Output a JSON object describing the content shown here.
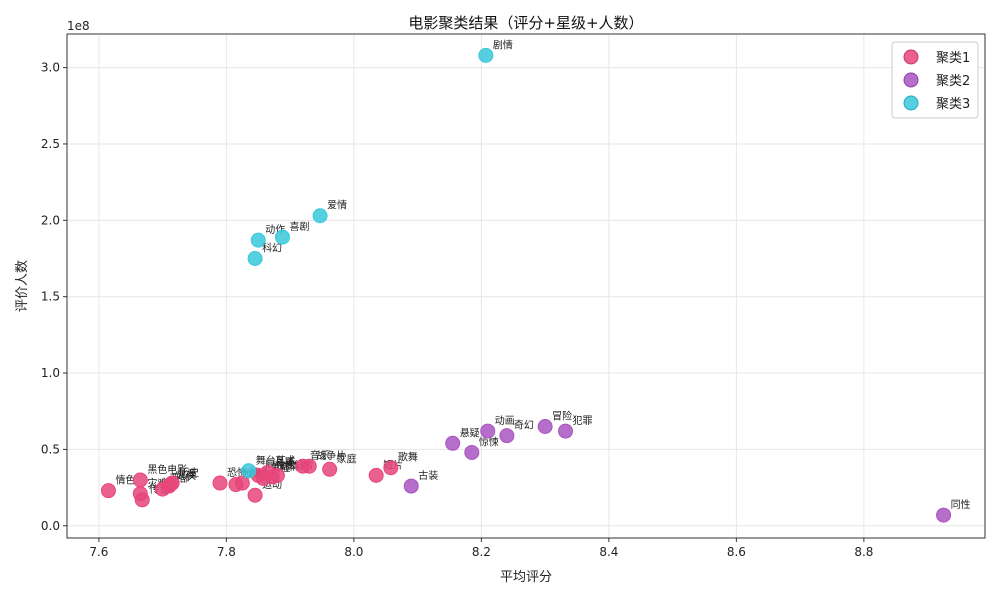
{
  "chart_data": {
    "type": "scatter",
    "title": "电影聚类结果（评分+星级+人数）",
    "xlabel": "平均评分",
    "ylabel": "评价人数",
    "y_offset_text": "1e8",
    "xlim": [
      7.55,
      8.99
    ],
    "ylim": [
      -0.08,
      3.22
    ],
    "xticks": [
      "7.6",
      "7.8",
      "8.0",
      "8.2",
      "8.4",
      "8.6",
      "8.8"
    ],
    "yticks": [
      "0.0",
      "0.5",
      "1.0",
      "1.5",
      "2.0",
      "2.5",
      "3.0"
    ],
    "xtick_values": [
      7.6,
      7.8,
      8.0,
      8.2,
      8.4,
      8.6,
      8.8
    ],
    "ytick_values": [
      0.0,
      0.5,
      1.0,
      1.5,
      2.0,
      2.5,
      3.0
    ],
    "grid": true,
    "legend_position": "top-right",
    "series": [
      {
        "name": "聚类1",
        "color": "#e8457a",
        "points": [
          {
            "x": 7.615,
            "y": 0.23,
            "label": "情色"
          },
          {
            "x": 7.665,
            "y": 0.3,
            "label": "黑色电影"
          },
          {
            "x": 7.665,
            "y": 0.21,
            "label": "灾难"
          },
          {
            "x": 7.668,
            "y": 0.17,
            "label": "传记"
          },
          {
            "x": 7.7,
            "y": 0.24,
            "label": "西部"
          },
          {
            "x": 7.71,
            "y": 0.26,
            "label": "武侠"
          },
          {
            "x": 7.712,
            "y": 0.27,
            "label": "儿童"
          },
          {
            "x": 7.715,
            "y": 0.28,
            "label": "历史"
          },
          {
            "x": 7.79,
            "y": 0.28,
            "label": "恐怖"
          },
          {
            "x": 7.815,
            "y": 0.27,
            "label": "惊悚"
          },
          {
            "x": 7.825,
            "y": 0.28,
            "label": "战争"
          },
          {
            "x": 7.845,
            "y": 0.2,
            "label": "运动"
          },
          {
            "x": 7.85,
            "y": 0.33,
            "label": "同性恋"
          },
          {
            "x": 7.858,
            "y": 0.31,
            "label": "鬼怪"
          },
          {
            "x": 7.865,
            "y": 0.35,
            "label": "悬疑"
          },
          {
            "x": 7.872,
            "y": 0.32,
            "label": "剧情片"
          },
          {
            "x": 7.88,
            "y": 0.33,
            "label": "传记片"
          },
          {
            "x": 7.92,
            "y": 0.39,
            "label": "音乐"
          },
          {
            "x": 7.93,
            "y": 0.39,
            "label": "战争片"
          },
          {
            "x": 7.962,
            "y": 0.37,
            "label": "家庭"
          },
          {
            "x": 8.035,
            "y": 0.33,
            "label": "短片"
          },
          {
            "x": 8.058,
            "y": 0.38,
            "label": "歌舞"
          }
        ]
      },
      {
        "name": "聚类2",
        "color": "#a855c0",
        "points": [
          {
            "x": 8.09,
            "y": 0.26,
            "label": "古装"
          },
          {
            "x": 8.155,
            "y": 0.54,
            "label": "悬疑"
          },
          {
            "x": 8.185,
            "y": 0.48,
            "label": "惊悚"
          },
          {
            "x": 8.21,
            "y": 0.62,
            "label": "动画"
          },
          {
            "x": 8.24,
            "y": 0.59,
            "label": "奇幻"
          },
          {
            "x": 8.3,
            "y": 0.65,
            "label": "冒险"
          },
          {
            "x": 8.332,
            "y": 0.62,
            "label": "犯罪"
          },
          {
            "x": 8.925,
            "y": 0.07,
            "label": "同性"
          }
        ]
      },
      {
        "name": "聚类3",
        "color": "#38c8dc",
        "points": [
          {
            "x": 8.207,
            "y": 3.08,
            "label": "剧情"
          },
          {
            "x": 7.947,
            "y": 2.03,
            "label": "爱情"
          },
          {
            "x": 7.85,
            "y": 1.87,
            "label": "动作"
          },
          {
            "x": 7.888,
            "y": 1.89,
            "label": "喜剧"
          },
          {
            "x": 7.845,
            "y": 1.75,
            "label": "科幻"
          },
          {
            "x": 7.835,
            "y": 0.36,
            "label": "舞台艺术"
          }
        ]
      }
    ]
  }
}
